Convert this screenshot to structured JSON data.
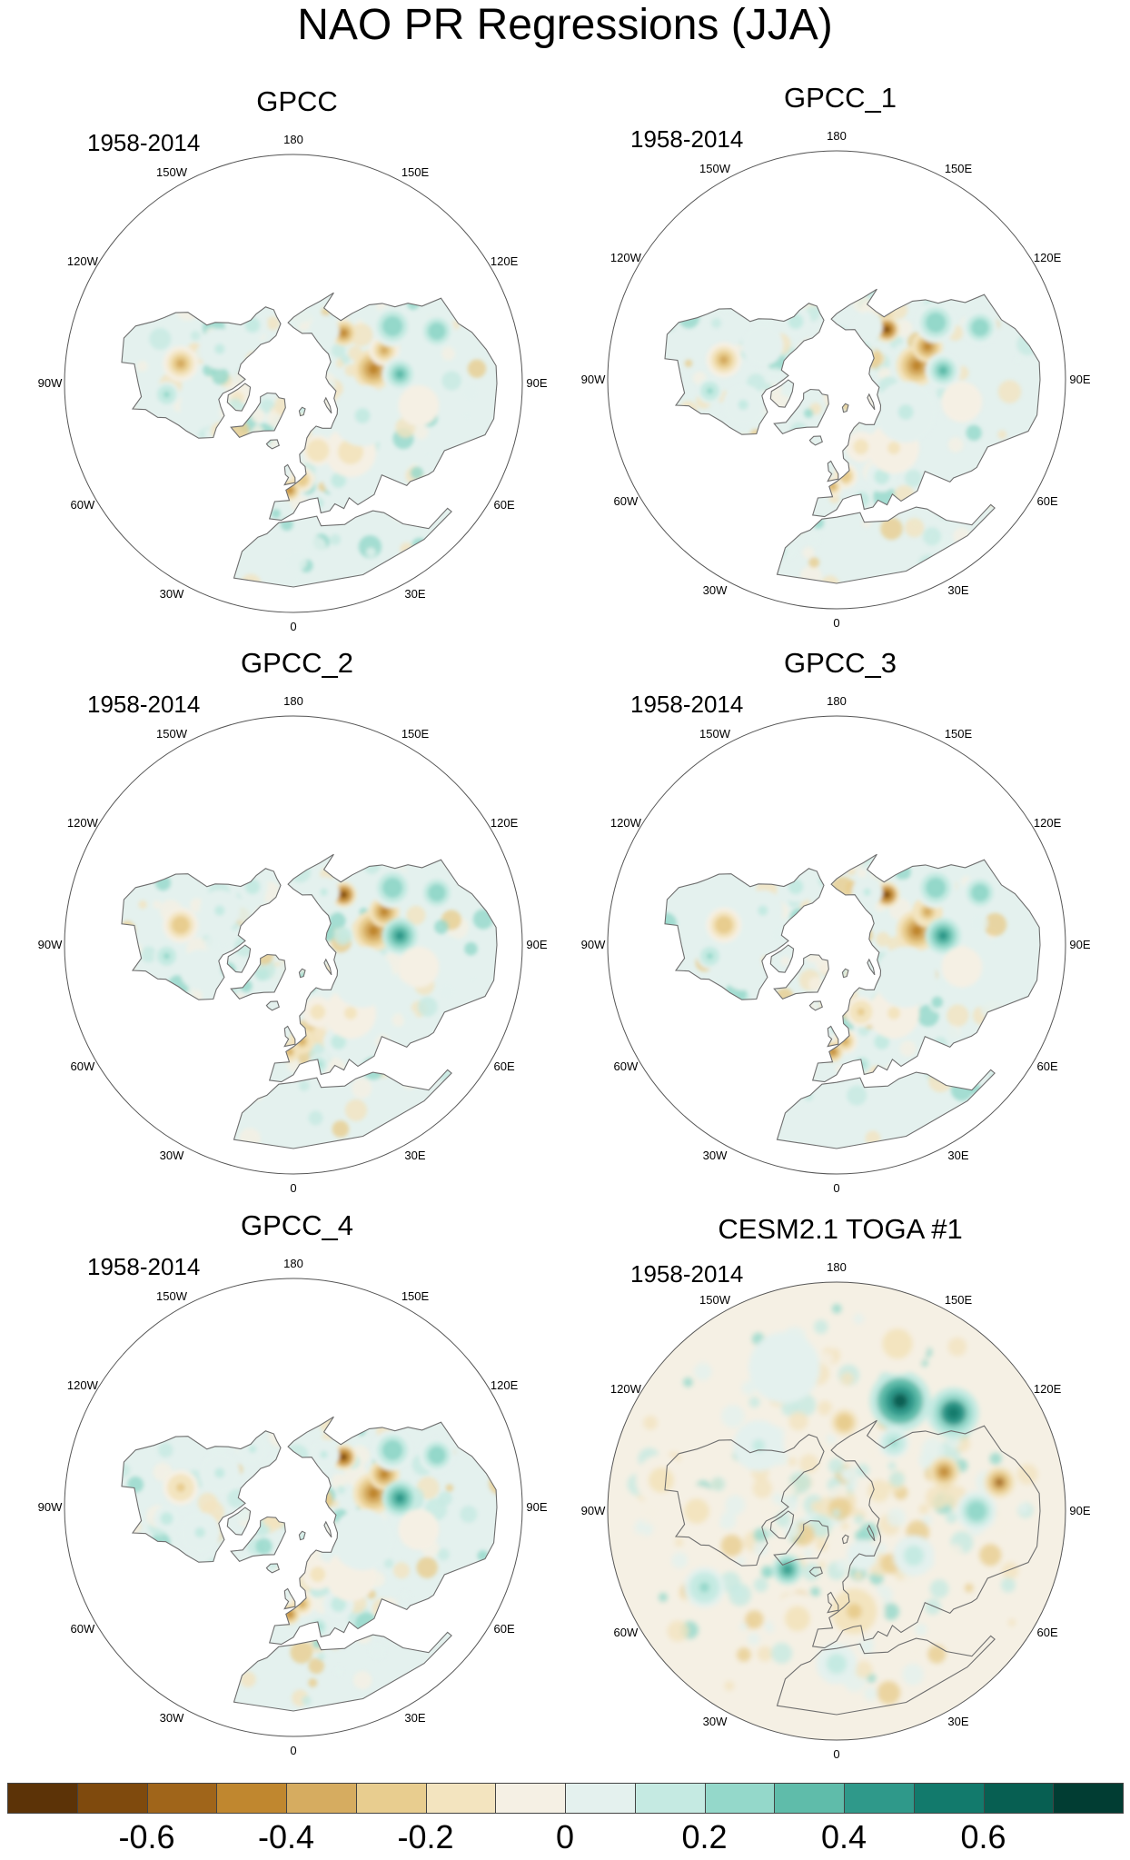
{
  "title": "NAO PR Regressions (JJA)",
  "chart_data": [
    {
      "type": "polar-map",
      "panel": "GPCC",
      "period": "1958-2014",
      "coverage": "land"
    },
    {
      "type": "polar-map",
      "panel": "GPCC_1",
      "period": "1958-2014",
      "coverage": "land"
    },
    {
      "type": "polar-map",
      "panel": "GPCC_2",
      "period": "1958-2014",
      "coverage": "land"
    },
    {
      "type": "polar-map",
      "panel": "GPCC_3",
      "period": "1958-2014",
      "coverage": "land"
    },
    {
      "type": "polar-map",
      "panel": "GPCC_4",
      "period": "1958-2014",
      "coverage": "land"
    },
    {
      "type": "polar-map",
      "panel": "CESM2.1 TOGA #1",
      "period": "1958-2014",
      "coverage": "global"
    }
  ],
  "longitude_labels": [
    {
      "lon": 180,
      "text": "180"
    },
    {
      "lon": 150,
      "text": "150E"
    },
    {
      "lon": 120,
      "text": "120E"
    },
    {
      "lon": 90,
      "text": "90E"
    },
    {
      "lon": 60,
      "text": "60E"
    },
    {
      "lon": 30,
      "text": "30E"
    },
    {
      "lon": 0,
      "text": "0"
    },
    {
      "lon": -30,
      "text": "30W"
    },
    {
      "lon": -60,
      "text": "60W"
    },
    {
      "lon": -90,
      "text": "90W"
    },
    {
      "lon": -120,
      "text": "120W"
    },
    {
      "lon": -150,
      "text": "150W"
    }
  ],
  "colorbar": {
    "levels": [
      -0.7,
      -0.6,
      -0.5,
      -0.4,
      -0.3,
      -0.2,
      -0.1,
      0,
      0.1,
      0.2,
      0.3,
      0.4,
      0.5,
      0.6,
      0.7
    ],
    "colors": [
      "#5c3307",
      "#7f4a0d",
      "#a0651a",
      "#c0872f",
      "#d6ac60",
      "#e8cd8f",
      "#f3e4bf",
      "#f5f0e4",
      "#e4f1ee",
      "#c5eae2",
      "#94d8ca",
      "#5fbcaa",
      "#2f998a",
      "#127a6c",
      "#075f52",
      "#013d33"
    ],
    "labels": [
      "-0.6",
      "-0.4",
      "-0.2",
      "0",
      "0.2",
      "0.4",
      "0.6"
    ],
    "label_values": [
      -0.6,
      -0.4,
      -0.2,
      0,
      0.2,
      0.4,
      0.6
    ]
  }
}
